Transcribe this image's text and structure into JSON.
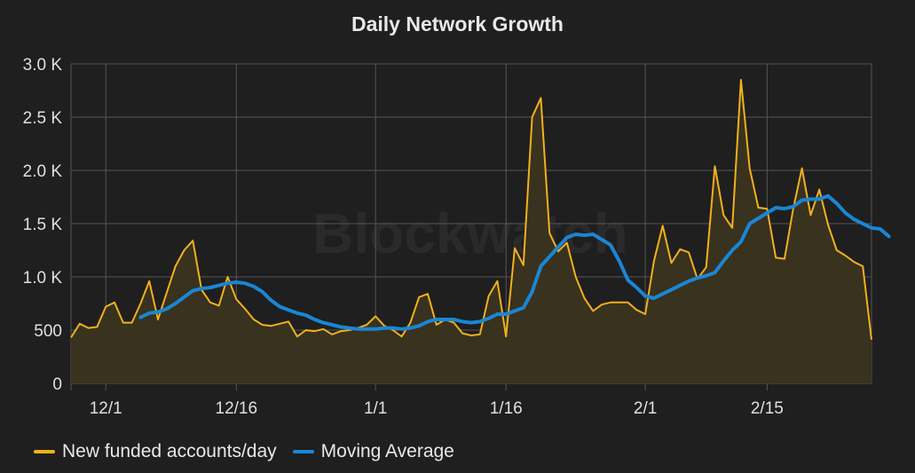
{
  "chart_data": {
    "type": "line",
    "title": "Daily Network Growth",
    "watermark": "Blockwatch",
    "xlabel": "",
    "ylabel": "",
    "x_start": "2017-11-27",
    "xticks": [
      {
        "label": "12/1",
        "date": "2017-12-01"
      },
      {
        "label": "12/16",
        "date": "2017-12-16"
      },
      {
        "label": "1/1",
        "date": "2018-01-01"
      },
      {
        "label": "1/16",
        "date": "2018-01-16"
      },
      {
        "label": "2/1",
        "date": "2018-02-01"
      },
      {
        "label": "2/15",
        "date": "2018-02-15"
      }
    ],
    "ylim": [
      0,
      3000
    ],
    "yticks": [
      {
        "label": "0",
        "value": 0
      },
      {
        "label": "500",
        "value": 500
      },
      {
        "label": "1.0 K",
        "value": 1000
      },
      {
        "label": "1.5 K",
        "value": 1500
      },
      {
        "label": "2.0 K",
        "value": 2000
      },
      {
        "label": "2.5 K",
        "value": 2500
      },
      {
        "label": "3.0 K",
        "value": 3000
      }
    ],
    "grid": true,
    "legend_position": "bottom-left",
    "background": "#1f1f1f",
    "grid_color": "#555555",
    "series": [
      {
        "name": "New funded accounts/day",
        "color": "#f2b01c",
        "fill": "#38321f",
        "style": "area",
        "values": [
          430,
          560,
          520,
          530,
          720,
          760,
          570,
          570,
          750,
          960,
          600,
          850,
          1100,
          1250,
          1340,
          880,
          760,
          730,
          1000,
          790,
          700,
          600,
          550,
          540,
          560,
          580,
          440,
          500,
          490,
          510,
          460,
          490,
          500,
          520,
          550,
          630,
          540,
          500,
          440,
          570,
          810,
          840,
          550,
          600,
          570,
          470,
          450,
          460,
          820,
          960,
          440,
          1270,
          1110,
          2500,
          2680,
          1410,
          1240,
          1320,
          1000,
          800,
          680,
          740,
          760,
          760,
          760,
          690,
          650,
          1150,
          1480,
          1130,
          1260,
          1230,
          980,
          1090,
          2040,
          1580,
          1460,
          2850,
          2020,
          1650,
          1640,
          1180,
          1170,
          1640,
          2020,
          1580,
          1820,
          1490,
          1250,
          1200,
          1140,
          1100,
          410
        ]
      },
      {
        "name": "Moving Average",
        "color": "#1a86d4",
        "fill": "none",
        "style": "line",
        "values": [
          null,
          null,
          null,
          null,
          null,
          null,
          null,
          null,
          620,
          660,
          670,
          700,
          750,
          810,
          870,
          890,
          900,
          920,
          940,
          950,
          940,
          910,
          860,
          780,
          720,
          690,
          660,
          640,
          600,
          570,
          550,
          530,
          520,
          510,
          510,
          510,
          520,
          520,
          510,
          520,
          540,
          580,
          600,
          600,
          600,
          580,
          570,
          580,
          610,
          650,
          650,
          680,
          710,
          860,
          1100,
          1190,
          1280,
          1370,
          1400,
          1390,
          1400,
          1350,
          1300,
          1150,
          970,
          900,
          820,
          800,
          840,
          880,
          920,
          960,
          990,
          1010,
          1040,
          1150,
          1250,
          1330,
          1500,
          1550,
          1600,
          1650,
          1640,
          1660,
          1720,
          1730,
          1730,
          1760,
          1690,
          1600,
          1540,
          1500,
          1460,
          1450,
          1380
        ]
      }
    ]
  }
}
